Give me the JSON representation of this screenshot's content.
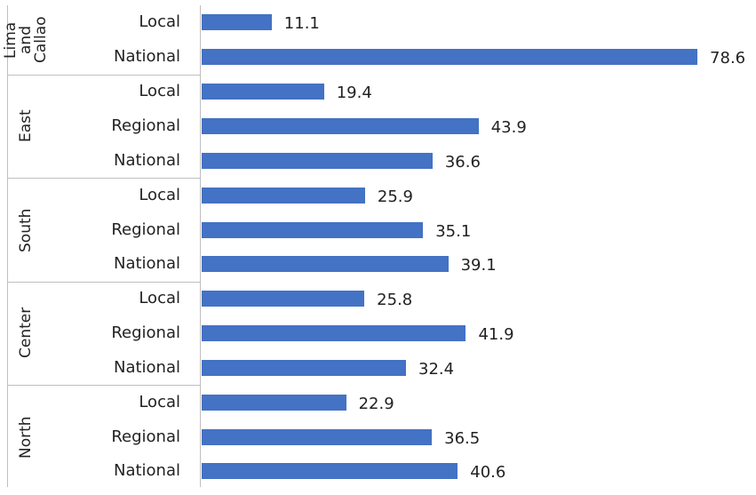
{
  "chart_data": {
    "type": "bar",
    "orientation": "horizontal",
    "color": "#4472c4",
    "groups": [
      {
        "name": "Lima and Callao",
        "categories": [
          "Local",
          "National"
        ],
        "values": [
          11.1,
          78.6
        ]
      },
      {
        "name": "East",
        "categories": [
          "Local",
          "Regional",
          "National"
        ],
        "values": [
          19.4,
          43.9,
          36.6
        ]
      },
      {
        "name": "South",
        "categories": [
          "Local",
          "Regional",
          "National"
        ],
        "values": [
          25.9,
          35.1,
          39.1
        ]
      },
      {
        "name": "Center",
        "categories": [
          "Local",
          "Regional",
          "National"
        ],
        "values": [
          25.8,
          41.9,
          32.4
        ]
      },
      {
        "name": "North",
        "categories": [
          "Local",
          "Regional",
          "National"
        ],
        "values": [
          22.9,
          36.5,
          40.6
        ]
      }
    ]
  }
}
